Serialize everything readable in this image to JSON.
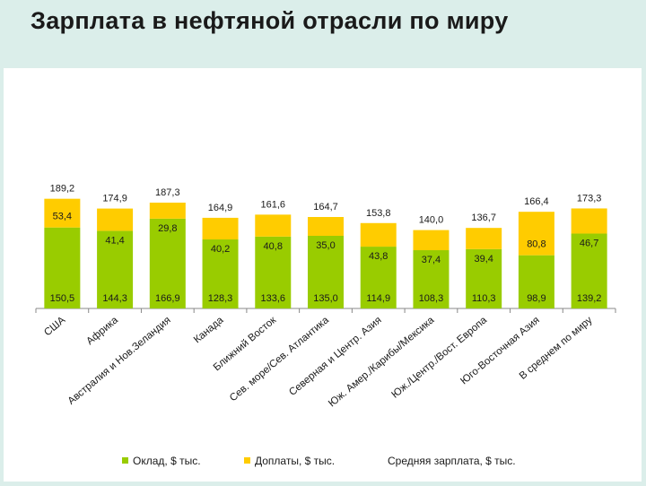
{
  "slide": {
    "title": "Зарплата в нефтяной отрасли по миру"
  },
  "colors": {
    "salary": "#99cc00",
    "bonus": "#ffcc00",
    "background": "#dbeeea",
    "panel": "#ffffff",
    "axis": "#888888",
    "text": "#1a1a1a"
  },
  "chart_data": {
    "type": "bar",
    "stacked": true,
    "title": "Зарплата в нефтяной отрасли по миру",
    "xlabel": "",
    "ylabel": "",
    "ylim": [
      0,
      200
    ],
    "grid": false,
    "legend_position": "bottom",
    "categories": [
      "США",
      "Африка",
      "Австралия и Нов.Зеландия",
      "Канада",
      "Ближний Восток",
      "Сев. море/Сев. Атлантика",
      "Северная и Центр. Азия",
      "Юж. Амер./Карибы/Мексика",
      "Юж./Центр./Вост. Европа",
      "Юго-Восточная Азия",
      "В среднем по миру"
    ],
    "series": [
      {
        "name": "Оклад, $ тыс.",
        "color": "#99cc00",
        "values": [
          150.5,
          144.3,
          166.9,
          128.3,
          133.6,
          135.0,
          114.9,
          108.3,
          110.3,
          98.9,
          139.2
        ],
        "labels": [
          "150,5",
          "144,3",
          "166,9",
          "128,3",
          "133,6",
          "135,0",
          "114,9",
          "108,3",
          "110,3",
          "98,9",
          "139,2"
        ]
      },
      {
        "name": "Доплаты, $ тыс.",
        "color": "#ffcc00",
        "values": [
          53.4,
          41.4,
          29.8,
          40.2,
          40.8,
          35.0,
          43.8,
          37.4,
          39.4,
          80.8,
          46.7
        ],
        "labels": [
          "53,4",
          "41,4",
          "29,8",
          "40,2",
          "40,8",
          "35,0",
          "43,8",
          "37,4",
          "39,4",
          "80,8",
          "46,7"
        ]
      }
    ],
    "totals": {
      "name": "Средняя зарплата, $ тыс.",
      "values": [
        189.2,
        174.9,
        187.3,
        164.9,
        161.6,
        164.7,
        153.8,
        140.0,
        136.7,
        166.4,
        173.3
      ],
      "labels": [
        "189,2",
        "174,9",
        "187,3",
        "164,9",
        "161,6",
        "164,7",
        "153,8",
        "140,0",
        "136,7",
        "166,4",
        "173,3"
      ]
    },
    "legend": [
      "Оклад, $ тыс.",
      "Доплаты, $ тыс.",
      "Средняя зарплата, $ тыс."
    ]
  }
}
